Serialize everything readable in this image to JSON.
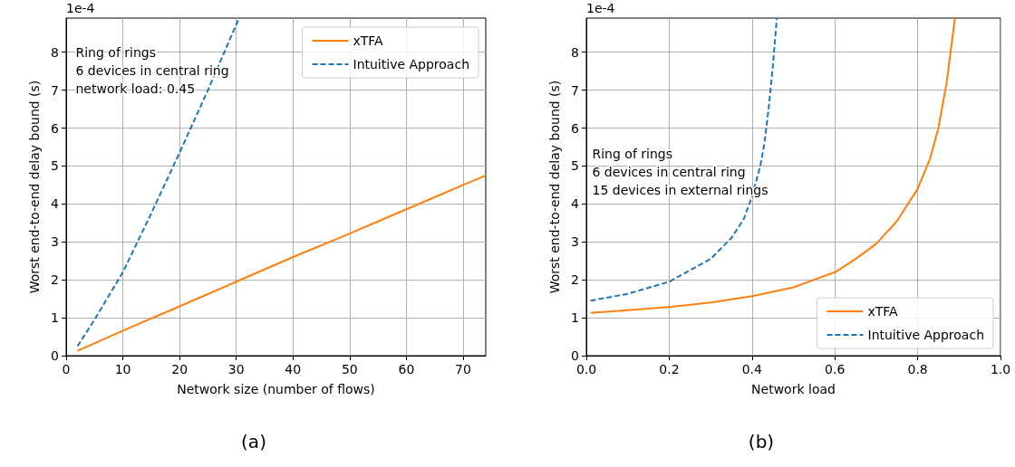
{
  "chart_data": [
    {
      "type": "line",
      "xlabel": "Network size (number of flows)",
      "ylabel": "Worst end-to-end delay bound (s)",
      "annotations": [
        "1e-4",
        "Ring of rings\n6 devices in central ring\nnetwork load: 0.45",
        "(a)"
      ],
      "xlim": [
        0,
        74
      ],
      "xticks": [
        0,
        10,
        20,
        30,
        40,
        50,
        60,
        70
      ],
      "ylim": [
        0,
        8.9
      ],
      "yticks": [
        0,
        1,
        2,
        3,
        4,
        5,
        6,
        7,
        8
      ],
      "grid": true,
      "legend": "top right",
      "marker": "none",
      "series": [
        {
          "name": "xTFA",
          "color": "#ff7f0e",
          "line_style": "solid",
          "x": [
            2,
            10,
            20,
            30,
            40,
            50,
            60,
            70,
            74
          ],
          "values": [
            0.13,
            0.66,
            1.3,
            1.95,
            2.6,
            3.22,
            3.86,
            4.5,
            4.75
          ]
        },
        {
          "name": "Intuitive Approach",
          "color": "#1f77b4",
          "line_style": "dashed",
          "x": [
            2,
            5,
            10,
            15,
            20,
            25,
            30.5
          ],
          "values": [
            0.25,
            0.95,
            2.2,
            3.75,
            5.35,
            7.0,
            8.9
          ]
        }
      ]
    },
    {
      "type": "line",
      "xlabel": "Network load",
      "ylabel": "Worst end-to-end delay bound (s)",
      "annotations": [
        "1e-4",
        "Ring of rings\n6 devices in central ring\n15 devices in external rings",
        "(b)"
      ],
      "xlim": [
        0,
        1
      ],
      "xticks": [
        {
          "value": 0,
          "label": "0.0"
        },
        {
          "value": 0.2,
          "label": "0.2"
        },
        {
          "value": 0.4,
          "label": "0.4"
        },
        {
          "value": 0.6,
          "label": "0.6"
        },
        {
          "value": 0.8,
          "label": "0.8"
        },
        {
          "value": 1,
          "label": "1.0"
        }
      ],
      "ylim": [
        0,
        8.9
      ],
      "yticks": [
        0,
        1,
        2,
        3,
        4,
        5,
        6,
        7,
        8
      ],
      "grid": true,
      "legend": "bottom right",
      "marker": "none",
      "series": [
        {
          "name": "xTFA",
          "color": "#ff7f0e",
          "line_style": "solid",
          "x": [
            0.01,
            0.1,
            0.2,
            0.3,
            0.4,
            0.5,
            0.55,
            0.6,
            0.65,
            0.7,
            0.75,
            0.8,
            0.83,
            0.85,
            0.87,
            0.89
          ],
          "values": [
            1.13,
            1.2,
            1.28,
            1.4,
            1.57,
            1.8,
            2.0,
            2.2,
            2.55,
            2.95,
            3.55,
            4.4,
            5.2,
            6.0,
            7.2,
            8.9
          ]
        },
        {
          "name": "Intuitive Approach",
          "color": "#1f77b4",
          "line_style": "dashed",
          "x": [
            0.01,
            0.1,
            0.2,
            0.3,
            0.35,
            0.38,
            0.4,
            0.42,
            0.43,
            0.44,
            0.45,
            0.46
          ],
          "values": [
            1.45,
            1.63,
            1.95,
            2.55,
            3.1,
            3.6,
            4.2,
            5.0,
            5.6,
            6.5,
            7.6,
            8.9
          ]
        }
      ]
    }
  ]
}
